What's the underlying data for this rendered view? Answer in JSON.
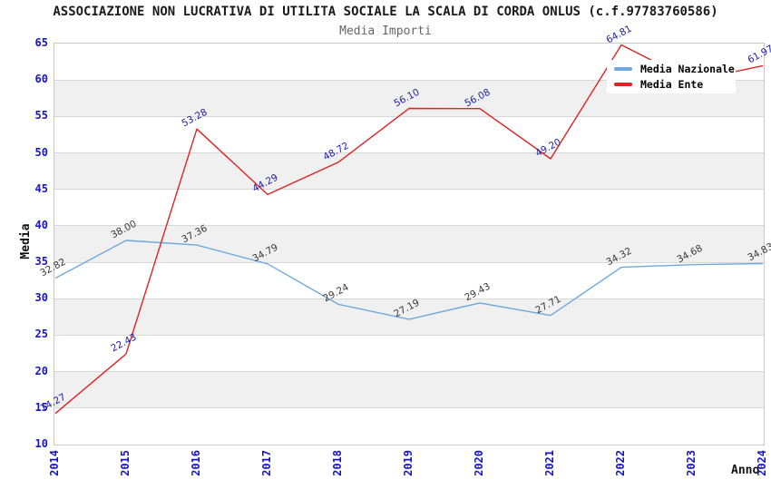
{
  "header": {
    "title": "ASSOCIAZIONE NON LUCRATIVA DI UTILITA SOCIALE LA SCALA DI CORDA ONLUS (c.f.97783760586)",
    "subtitle": "Media Importi"
  },
  "axes": {
    "y_title": "Media",
    "x_title": "Anno",
    "y_ticks": [
      65,
      60,
      55,
      50,
      45,
      40,
      35,
      30,
      25,
      20,
      15,
      10
    ],
    "x_ticks": [
      "2014",
      "2015",
      "2016",
      "2017",
      "2018",
      "2019",
      "2020",
      "2021",
      "2022",
      "2023",
      "2024"
    ]
  },
  "legend": {
    "items": [
      {
        "label": "Media Nazionale",
        "color": "#6fa8dc"
      },
      {
        "label": "Media Ente",
        "color": "#e02222"
      }
    ]
  },
  "colors": {
    "tick_label": "#1414cc",
    "line_nazionale": "#6fa8dc",
    "line_ente": "#e02222",
    "point_label_nazionale": "#3a3a3a",
    "point_label_ente": "#2121a3",
    "band_gray": "#f0f0f0",
    "gridline": "#d8d8d8",
    "frame": "#c9c9c9",
    "subtitle_gray": "#666666"
  },
  "chart_data": {
    "type": "line",
    "title": "Media Importi",
    "xlabel": "Anno",
    "ylabel": "Media",
    "x": [
      2014,
      2015,
      2016,
      2017,
      2018,
      2019,
      2020,
      2021,
      2022,
      2023,
      2024
    ],
    "series": [
      {
        "name": "Media Nazionale",
        "color": "#6fa8dc",
        "values": [
          32.82,
          38.0,
          37.36,
          34.79,
          29.24,
          27.19,
          29.43,
          27.71,
          34.32,
          34.68,
          34.83
        ],
        "point_labels": [
          "32.82",
          "38.00",
          "37.36",
          "34.79",
          "29.24",
          "27.19",
          "29.43",
          "27.71",
          "34.32",
          "34.68",
          "34.83"
        ]
      },
      {
        "name": "Media Ente",
        "color": "#e02222",
        "values": [
          14.27,
          22.43,
          53.28,
          44.29,
          48.72,
          56.1,
          56.08,
          49.2,
          64.81,
          59.9,
          61.97
        ],
        "point_labels": [
          "14.27",
          "22.43",
          "53.28",
          "44.29",
          "48.72",
          "56.10",
          "56.08",
          "49.20",
          "64.81",
          null,
          "61.97"
        ]
      }
    ],
    "ylim": [
      10,
      65
    ],
    "ytick_step": 5,
    "grid": true,
    "background_bands": true,
    "legend_position": "top-right",
    "note_2023_ente_label": "hidden behind legend box"
  }
}
